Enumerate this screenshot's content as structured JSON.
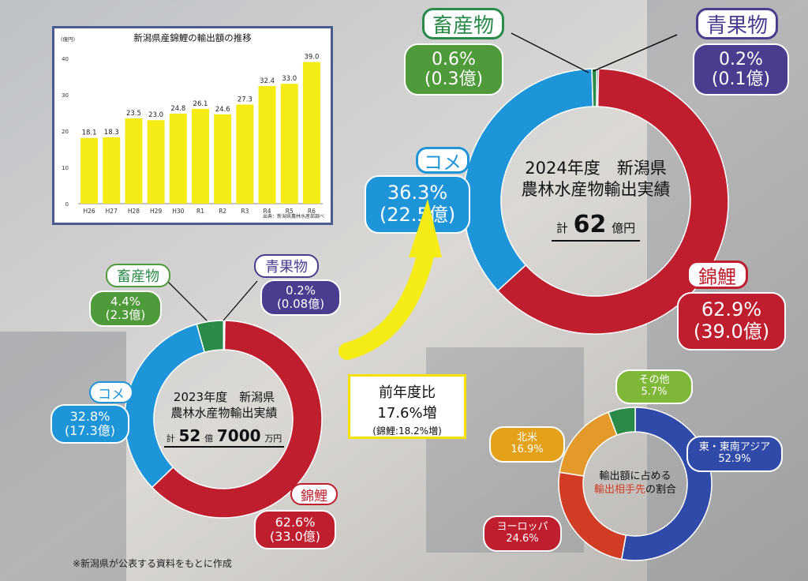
{
  "colors": {
    "koi": "#bf1e2e",
    "rice": "#1e95d9",
    "livestock": "#2a8a49",
    "produce": "#4a3c8f",
    "bar": "#f6ec15",
    "asia": "#2f4aa8",
    "europe": "#d13c25",
    "na": "#e39a2a",
    "other": "#2a8a49"
  },
  "bar_panel": {
    "title": "新潟県産錦鯉の輸出額の推移",
    "y_unit": "(億円)",
    "source": "出典：新潟県農林水産部調べ"
  },
  "pie2024": {
    "center_line1": "2024年度　新潟県",
    "center_line2": "農林水産物輸出実績",
    "total_prefix": "計",
    "total_value": "62",
    "total_unit": "億円",
    "koi": {
      "name": "錦鯉",
      "pct": "62.9%",
      "amt": "(39.0億)"
    },
    "rice": {
      "name": "コメ",
      "pct": "36.3%",
      "amt": "(22.5億)"
    },
    "livestock": {
      "name": "畜産物",
      "pct": "0.6%",
      "amt": "(0.3億)"
    },
    "produce": {
      "name": "青果物",
      "pct": "0.2%",
      "amt": "(0.1億)"
    }
  },
  "pie2023": {
    "center_line1": "2023年度　新潟県",
    "center_line2": "農林水産物輸出実績",
    "total_prefix": "計",
    "total_value1": "52",
    "total_unit1": "億",
    "total_value2": "7000",
    "total_unit2": "万円",
    "koi": {
      "name": "錦鯉",
      "pct": "62.6%",
      "amt": "(33.0億)"
    },
    "rice": {
      "name": "コメ",
      "pct": "32.8%",
      "amt": "(17.3億)"
    },
    "livestock": {
      "name": "畜産物",
      "pct": "4.4%",
      "amt": "(2.3億)"
    },
    "produce": {
      "name": "青果物",
      "pct": "0.2%",
      "amt": "(0.08億)"
    }
  },
  "yoy": {
    "line1": "前年度比",
    "line2": "17.6%増",
    "line3": "(錦鯉:18.2%増)"
  },
  "dest": {
    "center_line1": "輸出額に占める",
    "center_hl": "輸出相手先",
    "center_rest": "の割合",
    "asia": {
      "name": "東・東南アジア",
      "pct": "52.9%"
    },
    "europe": {
      "name": "ヨーロッパ",
      "pct": "24.6%"
    },
    "na": {
      "name": "北米",
      "pct": "16.9%"
    },
    "other": {
      "name": "その他",
      "pct": "5.7%"
    }
  },
  "footnote": "※新潟県が公表する資料をもとに作成",
  "chart_data": [
    {
      "type": "bar",
      "title": "新潟県産錦鯉の輸出額の推移",
      "ylabel": "(億円)",
      "categories": [
        "H26",
        "H27",
        "H28",
        "H29",
        "H30",
        "R1",
        "R2",
        "R3",
        "R4",
        "R5",
        "R6"
      ],
      "values": [
        18.1,
        18.3,
        23.5,
        23.0,
        24.8,
        26.1,
        24.6,
        27.3,
        32.4,
        33.0,
        39.0
      ],
      "value_labels": [
        "18.1",
        "18.3",
        "23.5",
        "23.0",
        "24.8",
        "26.1",
        "24.6",
        "27.3",
        "32.4",
        "33.0",
        "39.0"
      ],
      "ylim": [
        0,
        40
      ],
      "yticks": [
        "0",
        "10",
        "20",
        "30",
        "40"
      ],
      "grid": false
    },
    {
      "type": "pie",
      "title": "2024年度　新潟県 農林水産物輸出実績",
      "categories": [
        "錦鯉",
        "コメ",
        "畜産物",
        "青果物"
      ],
      "values": [
        62.9,
        36.3,
        0.6,
        0.2
      ],
      "amounts": [
        39.0,
        22.5,
        0.3,
        0.1
      ]
    },
    {
      "type": "pie",
      "title": "2023年度　新潟県 農林水産物輸出実績",
      "categories": [
        "錦鯉",
        "コメ",
        "畜産物",
        "青果物"
      ],
      "values": [
        62.6,
        32.8,
        4.4,
        0.2
      ],
      "amounts": [
        33.0,
        17.3,
        2.3,
        0.08
      ]
    },
    {
      "type": "pie",
      "title": "輸出額に占める輸出相手先の割合",
      "categories": [
        "東・東南アジア",
        "ヨーロッパ",
        "北米",
        "その他"
      ],
      "values": [
        52.9,
        24.6,
        16.9,
        5.7
      ]
    }
  ]
}
